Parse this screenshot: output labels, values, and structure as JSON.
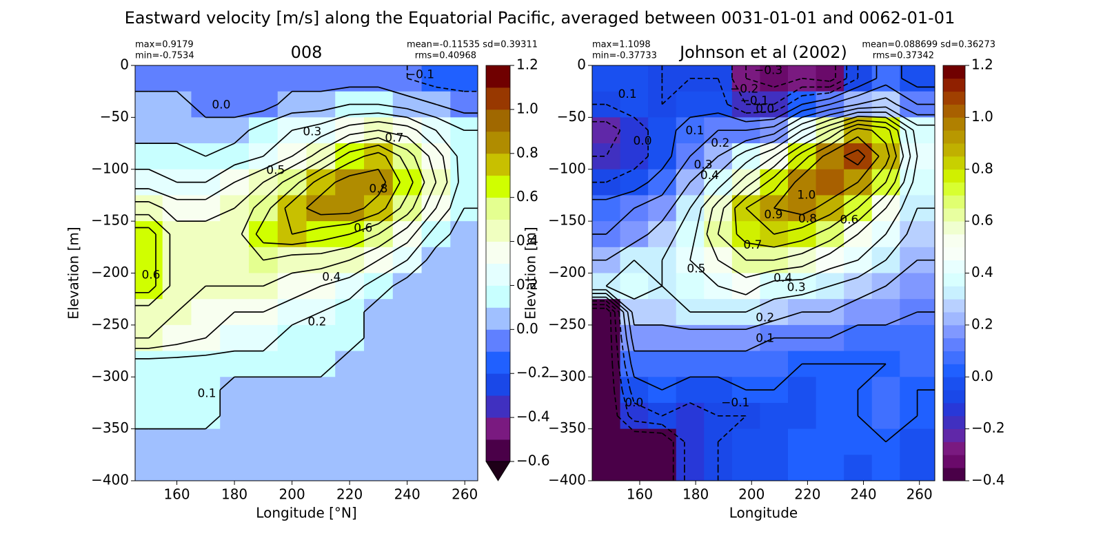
{
  "title": "Eastward velocity [m/s] along the Equatorial Pacific, averaged between 0031-01-01 and 0062-01-01",
  "chart_data": [
    {
      "type": "heatmap",
      "title": "008",
      "annotations": [
        "max=0.9179",
        "min=-0.7534",
        "mean=-0.11535 sd=0.39311",
        "rms=0.40968"
      ],
      "xlabel": "Longitude [°N]",
      "ylabel": "Elevation [m]",
      "xlim": [
        145.5,
        264.5
      ],
      "ylim": [
        -400,
        0
      ],
      "xticks": [
        160,
        180,
        200,
        220,
        240,
        260
      ],
      "yticks": [
        0,
        {
          "value": -50,
          "label": "−50"
        },
        {
          "value": -100,
          "label": "−100"
        },
        {
          "value": -150,
          "label": "−150"
        },
        {
          "value": -200,
          "label": "−200"
        },
        {
          "value": -250,
          "label": "−250"
        },
        {
          "value": -300,
          "label": "−300"
        },
        {
          "value": -350,
          "label": "−350"
        },
        {
          "value": -400,
          "label": "−400"
        }
      ],
      "x": [
        145.5,
        155,
        165,
        175,
        185,
        195,
        205,
        215,
        225,
        235,
        245,
        255,
        264.5
      ],
      "y": [
        0,
        -25,
        -50,
        -75,
        -100,
        -125,
        -150,
        -175,
        -200,
        -225,
        -250,
        -275,
        -300,
        -325,
        -350,
        -375,
        -400
      ],
      "values": [
        [
          -0.05,
          -0.05,
          -0.05,
          -0.05,
          -0.05,
          -0.05,
          -0.05,
          -0.05,
          -0.05,
          -0.1,
          -0.15,
          -0.15
        ],
        [
          0.05,
          0.05,
          -0.05,
          -0.05,
          -0.05,
          0.05,
          0.05,
          0.1,
          0.1,
          0.05,
          0.0,
          -0.05
        ],
        [
          0.05,
          0.05,
          0.05,
          0.05,
          0.15,
          0.2,
          0.25,
          0.35,
          0.4,
          0.35,
          0.2,
          0.1
        ],
        [
          0.15,
          0.15,
          0.1,
          0.15,
          0.2,
          0.3,
          0.45,
          0.65,
          0.75,
          0.55,
          0.35,
          0.15
        ],
        [
          0.25,
          0.2,
          0.2,
          0.3,
          0.4,
          0.55,
          0.75,
          0.85,
          0.85,
          0.65,
          0.4,
          0.15
        ],
        [
          0.45,
          0.35,
          0.35,
          0.4,
          0.55,
          0.75,
          0.85,
          0.85,
          0.75,
          0.55,
          0.3,
          0.1
        ],
        [
          0.65,
          0.45,
          0.45,
          0.45,
          0.65,
          0.7,
          0.65,
          0.6,
          0.5,
          0.35,
          0.15,
          0.05
        ],
        [
          0.65,
          0.45,
          0.45,
          0.45,
          0.5,
          0.45,
          0.45,
          0.4,
          0.3,
          0.2,
          0.05,
          0.05
        ],
        [
          0.65,
          0.45,
          0.4,
          0.4,
          0.4,
          0.35,
          0.3,
          0.25,
          0.15,
          0.05,
          0.05,
          0.05
        ],
        [
          0.45,
          0.4,
          0.35,
          0.3,
          0.3,
          0.25,
          0.2,
          0.15,
          0.05,
          0.05,
          0.05,
          0.05
        ],
        [
          0.4,
          0.35,
          0.3,
          0.25,
          0.25,
          0.15,
          0.15,
          0.15,
          0.05,
          0.05,
          0.05,
          0.05
        ],
        [
          0.15,
          0.15,
          0.15,
          0.15,
          0.15,
          0.15,
          0.15,
          0.05,
          0.05,
          0.05,
          0.05,
          0.05
        ],
        [
          0.15,
          0.15,
          0.15,
          0.05,
          0.05,
          0.05,
          0.05,
          0.05,
          0.05,
          0.05,
          0.05,
          0.05
        ],
        [
          0.15,
          0.15,
          0.15,
          0.05,
          0.05,
          0.05,
          0.05,
          0.05,
          0.05,
          0.05,
          0.05,
          0.05
        ],
        [
          0.05,
          0.05,
          0.05,
          0.05,
          0.05,
          0.05,
          0.05,
          0.05,
          0.05,
          0.05,
          0.05,
          0.05
        ],
        [
          0.05,
          0.05,
          0.05,
          0.05,
          0.05,
          0.05,
          0.05,
          0.05,
          0.05,
          0.05,
          0.05,
          0.05
        ]
      ],
      "contour_levels": [
        -0.1,
        0.0,
        0.1,
        0.2,
        0.3,
        0.4,
        0.5,
        0.6,
        0.7,
        0.8,
        0.9
      ],
      "contour_labels": [
        {
          "label": "0.0",
          "x": 175.4,
          "y": -38
        },
        {
          "label": "−0.1",
          "x": 244.5,
          "y": -9
        },
        {
          "label": "0.3",
          "x": 207,
          "y": -64
        },
        {
          "label": "0.7",
          "x": 235.5,
          "y": -70
        },
        {
          "label": "0.5",
          "x": 194.3,
          "y": -101
        },
        {
          "label": "0.8",
          "x": 230,
          "y": -119
        },
        {
          "label": "0.6",
          "x": 224.7,
          "y": -157
        },
        {
          "label": "0.6",
          "x": 151,
          "y": -202
        },
        {
          "label": "0.4",
          "x": 213.7,
          "y": -204
        },
        {
          "label": "0.2",
          "x": 208.7,
          "y": -247
        },
        {
          "label": "0.1",
          "x": 170.4,
          "y": -316
        }
      ],
      "colorbar": {
        "levels": [
          -0.6,
          -0.5,
          -0.4,
          -0.3,
          -0.2,
          -0.1,
          0.0,
          0.1,
          0.2,
          0.3,
          0.4,
          0.5,
          0.6,
          0.7,
          0.8,
          0.9,
          1.0,
          1.1,
          1.2
        ],
        "colors": [
          "#4a0048",
          "#7a1a80",
          "#4030c0",
          "#1a48e8",
          "#2060ff",
          "#6080ff",
          "#a0c0ff",
          "#c8ffff",
          "#e4ffff",
          "#f8fff0",
          "#f0ffc0",
          "#e4ff90",
          "#d0ff00",
          "#c8c000",
          "#b08c00",
          "#a06800",
          "#983800",
          "#700000"
        ],
        "extend": "min",
        "under_color": "#1e0018",
        "ticks": [
          {
            "value": -0.6,
            "label": "−0.6"
          },
          {
            "value": -0.4,
            "label": "−0.4"
          },
          {
            "value": -0.2,
            "label": "−0.2"
          },
          {
            "value": 0.0,
            "label": "0.0"
          },
          0.2,
          0.4,
          0.6,
          0.8,
          {
            "value": 1.0,
            "label": "1.0"
          },
          1.2
        ]
      }
    },
    {
      "type": "heatmap",
      "title": "Johnson et al (2002)",
      "annotations": [
        "max=1.1098",
        "min=-0.37733",
        "mean=0.088699 sd=0.36273",
        "rms=0.37342"
      ],
      "xlabel": "Longitude",
      "ylabel": "Elevation [m]",
      "xlim": [
        143,
        265.5
      ],
      "ylim": [
        -400,
        0
      ],
      "xticks": [
        160,
        180,
        200,
        220,
        240,
        260
      ],
      "yticks": [
        0,
        {
          "value": -50,
          "label": "−50"
        },
        {
          "value": -100,
          "label": "−100"
        },
        {
          "value": -150,
          "label": "−150"
        },
        {
          "value": -200,
          "label": "−200"
        },
        {
          "value": -250,
          "label": "−250"
        },
        {
          "value": -300,
          "label": "−300"
        },
        {
          "value": -350,
          "label": "−350"
        },
        {
          "value": -400,
          "label": "−400"
        }
      ],
      "x": [
        143,
        153,
        163,
        173,
        183,
        193,
        203,
        213,
        223,
        233,
        243,
        253,
        265.5
      ],
      "y": [
        0,
        -25,
        -50,
        -75,
        -100,
        -125,
        -150,
        -175,
        -200,
        -225,
        -250,
        -275,
        -300,
        -325,
        -350,
        -375,
        -400
      ],
      "values": [
        [
          -0.05,
          -0.05,
          -0.1,
          -0.1,
          -0.1,
          -0.3,
          -0.35,
          -0.3,
          -0.35,
          -0.1,
          0.05,
          -0.05
        ],
        [
          -0.1,
          -0.05,
          -0.1,
          -0.05,
          -0.05,
          -0.2,
          -0.2,
          0.0,
          0.1,
          0.2,
          0.25,
          0.1
        ],
        [
          -0.25,
          -0.15,
          -0.05,
          0.05,
          0.1,
          0.1,
          0.15,
          0.4,
          0.6,
          0.85,
          0.75,
          0.35
        ],
        [
          -0.2,
          -0.15,
          -0.05,
          0.1,
          0.2,
          0.35,
          0.5,
          0.75,
          0.95,
          1.05,
          0.85,
          0.4
        ],
        [
          -0.1,
          -0.05,
          0.05,
          0.2,
          0.35,
          0.55,
          0.75,
          0.95,
          1.0,
          0.9,
          0.7,
          0.35
        ],
        [
          0.05,
          0.1,
          0.15,
          0.3,
          0.55,
          0.8,
          0.9,
          0.95,
          0.85,
          0.7,
          0.5,
          0.3
        ],
        [
          0.1,
          0.15,
          0.25,
          0.35,
          0.6,
          0.75,
          0.8,
          0.75,
          0.65,
          0.5,
          0.4,
          0.25
        ],
        [
          0.2,
          0.3,
          0.3,
          0.4,
          0.5,
          0.6,
          0.6,
          0.55,
          0.45,
          0.4,
          0.3,
          0.2
        ],
        [
          0.3,
          0.35,
          0.3,
          0.35,
          0.4,
          0.45,
          0.35,
          0.35,
          0.3,
          0.25,
          0.2,
          0.15
        ],
        [
          -0.4,
          0.25,
          0.25,
          0.3,
          0.3,
          0.3,
          0.25,
          0.2,
          0.2,
          0.15,
          0.15,
          0.1
        ],
        [
          -0.4,
          0.15,
          0.15,
          0.15,
          0.15,
          0.15,
          0.1,
          0.1,
          0.1,
          0.05,
          0.05,
          0.05
        ],
        [
          -0.4,
          0.05,
          0.05,
          0.05,
          0.05,
          0.05,
          0.05,
          0.0,
          0.0,
          0.0,
          0.0,
          0.05
        ],
        [
          -0.4,
          -0.05,
          0.0,
          -0.05,
          -0.05,
          0.0,
          0.0,
          -0.05,
          0.0,
          0.0,
          0.05,
          0.0
        ],
        [
          -0.4,
          -0.15,
          -0.1,
          -0.15,
          -0.1,
          -0.1,
          -0.05,
          -0.05,
          0.0,
          0.0,
          0.05,
          0.0
        ],
        [
          -0.4,
          -0.4,
          -0.4,
          -0.15,
          -0.1,
          -0.05,
          -0.05,
          0.0,
          0.0,
          0.0,
          0.0,
          -0.05
        ],
        [
          -0.4,
          -0.4,
          -0.4,
          -0.15,
          -0.1,
          -0.05,
          -0.05,
          0.0,
          0.0,
          -0.05,
          0.0,
          -0.05
        ]
      ],
      "contour_levels": [
        -0.3,
        -0.2,
        -0.1,
        0.0,
        0.1,
        0.2,
        0.3,
        0.4,
        0.5,
        0.6,
        0.7,
        0.8,
        0.9,
        1.0
      ],
      "contour_labels": [
        {
          "label": "−0.3",
          "x": 206,
          "y": -5
        },
        {
          "label": "−0.2",
          "x": 197.4,
          "y": -23
        },
        {
          "label": "−0.1",
          "x": 201,
          "y": -34
        },
        {
          "label": "0.0",
          "x": 204.8,
          "y": -42
        },
        {
          "label": "0.1",
          "x": 155.6,
          "y": -28
        },
        {
          "label": "0.0",
          "x": 161,
          "y": -73
        },
        {
          "label": "0.1",
          "x": 179.7,
          "y": -63
        },
        {
          "label": "0.2",
          "x": 188.8,
          "y": -75
        },
        {
          "label": "0.3",
          "x": 182.7,
          "y": -96
        },
        {
          "label": "0.4",
          "x": 185,
          "y": -106
        },
        {
          "label": "1.0",
          "x": 219.6,
          "y": -125
        },
        {
          "label": "0.9",
          "x": 207.8,
          "y": -144
        },
        {
          "label": "0.8",
          "x": 220,
          "y": -148
        },
        {
          "label": "0.6",
          "x": 234.9,
          "y": -149
        },
        {
          "label": "0.7",
          "x": 200.4,
          "y": -173
        },
        {
          "label": "0.5",
          "x": 180.2,
          "y": -196
        },
        {
          "label": "0.4",
          "x": 211.2,
          "y": -205
        },
        {
          "label": "0.3",
          "x": 216,
          "y": -214
        },
        {
          "label": "0.2",
          "x": 204.8,
          "y": -243
        },
        {
          "label": "0.1",
          "x": 204.8,
          "y": -263
        },
        {
          "label": "0.0",
          "x": 158,
          "y": -325
        },
        {
          "label": "−0.1",
          "x": 194.2,
          "y": -325
        }
      ],
      "colorbar": {
        "levels": [
          -0.4,
          -0.35,
          -0.3,
          -0.25,
          -0.2,
          -0.15,
          -0.1,
          -0.05,
          0.0,
          0.05,
          0.1,
          0.15,
          0.2,
          0.25,
          0.3,
          0.35,
          0.4,
          0.45,
          0.5,
          0.55,
          0.6,
          0.65,
          0.7,
          0.75,
          0.8,
          0.85,
          0.9,
          0.95,
          1.0,
          1.05,
          1.1,
          1.15,
          1.2
        ],
        "colors": [
          "#4a0048",
          "#6a0a6a",
          "#7a1a80",
          "#6028a8",
          "#4030c0",
          "#2838d8",
          "#1a48e8",
          "#1a50f0",
          "#2060ff",
          "#4070ff",
          "#6080ff",
          "#8098ff",
          "#a0b8ff",
          "#b8d0ff",
          "#c8f0ff",
          "#d8ffff",
          "#e8ffff",
          "#f8fff8",
          "#f8fff0",
          "#f0ffd0",
          "#e8ffa0",
          "#e0ff70",
          "#d8ff30",
          "#d0f000",
          "#c8d000",
          "#c0b000",
          "#b89800",
          "#b08000",
          "#a86000",
          "#a04000",
          "#902000",
          "#700000"
        ],
        "extend": "neither",
        "ticks": [
          {
            "value": -0.4,
            "label": "−0.4"
          },
          {
            "value": -0.2,
            "label": "−0.2"
          },
          {
            "value": 0.0,
            "label": "0.0"
          },
          0.2,
          0.4,
          0.6,
          0.8,
          {
            "value": 1.0,
            "label": "1.0"
          },
          1.2
        ]
      }
    }
  ]
}
